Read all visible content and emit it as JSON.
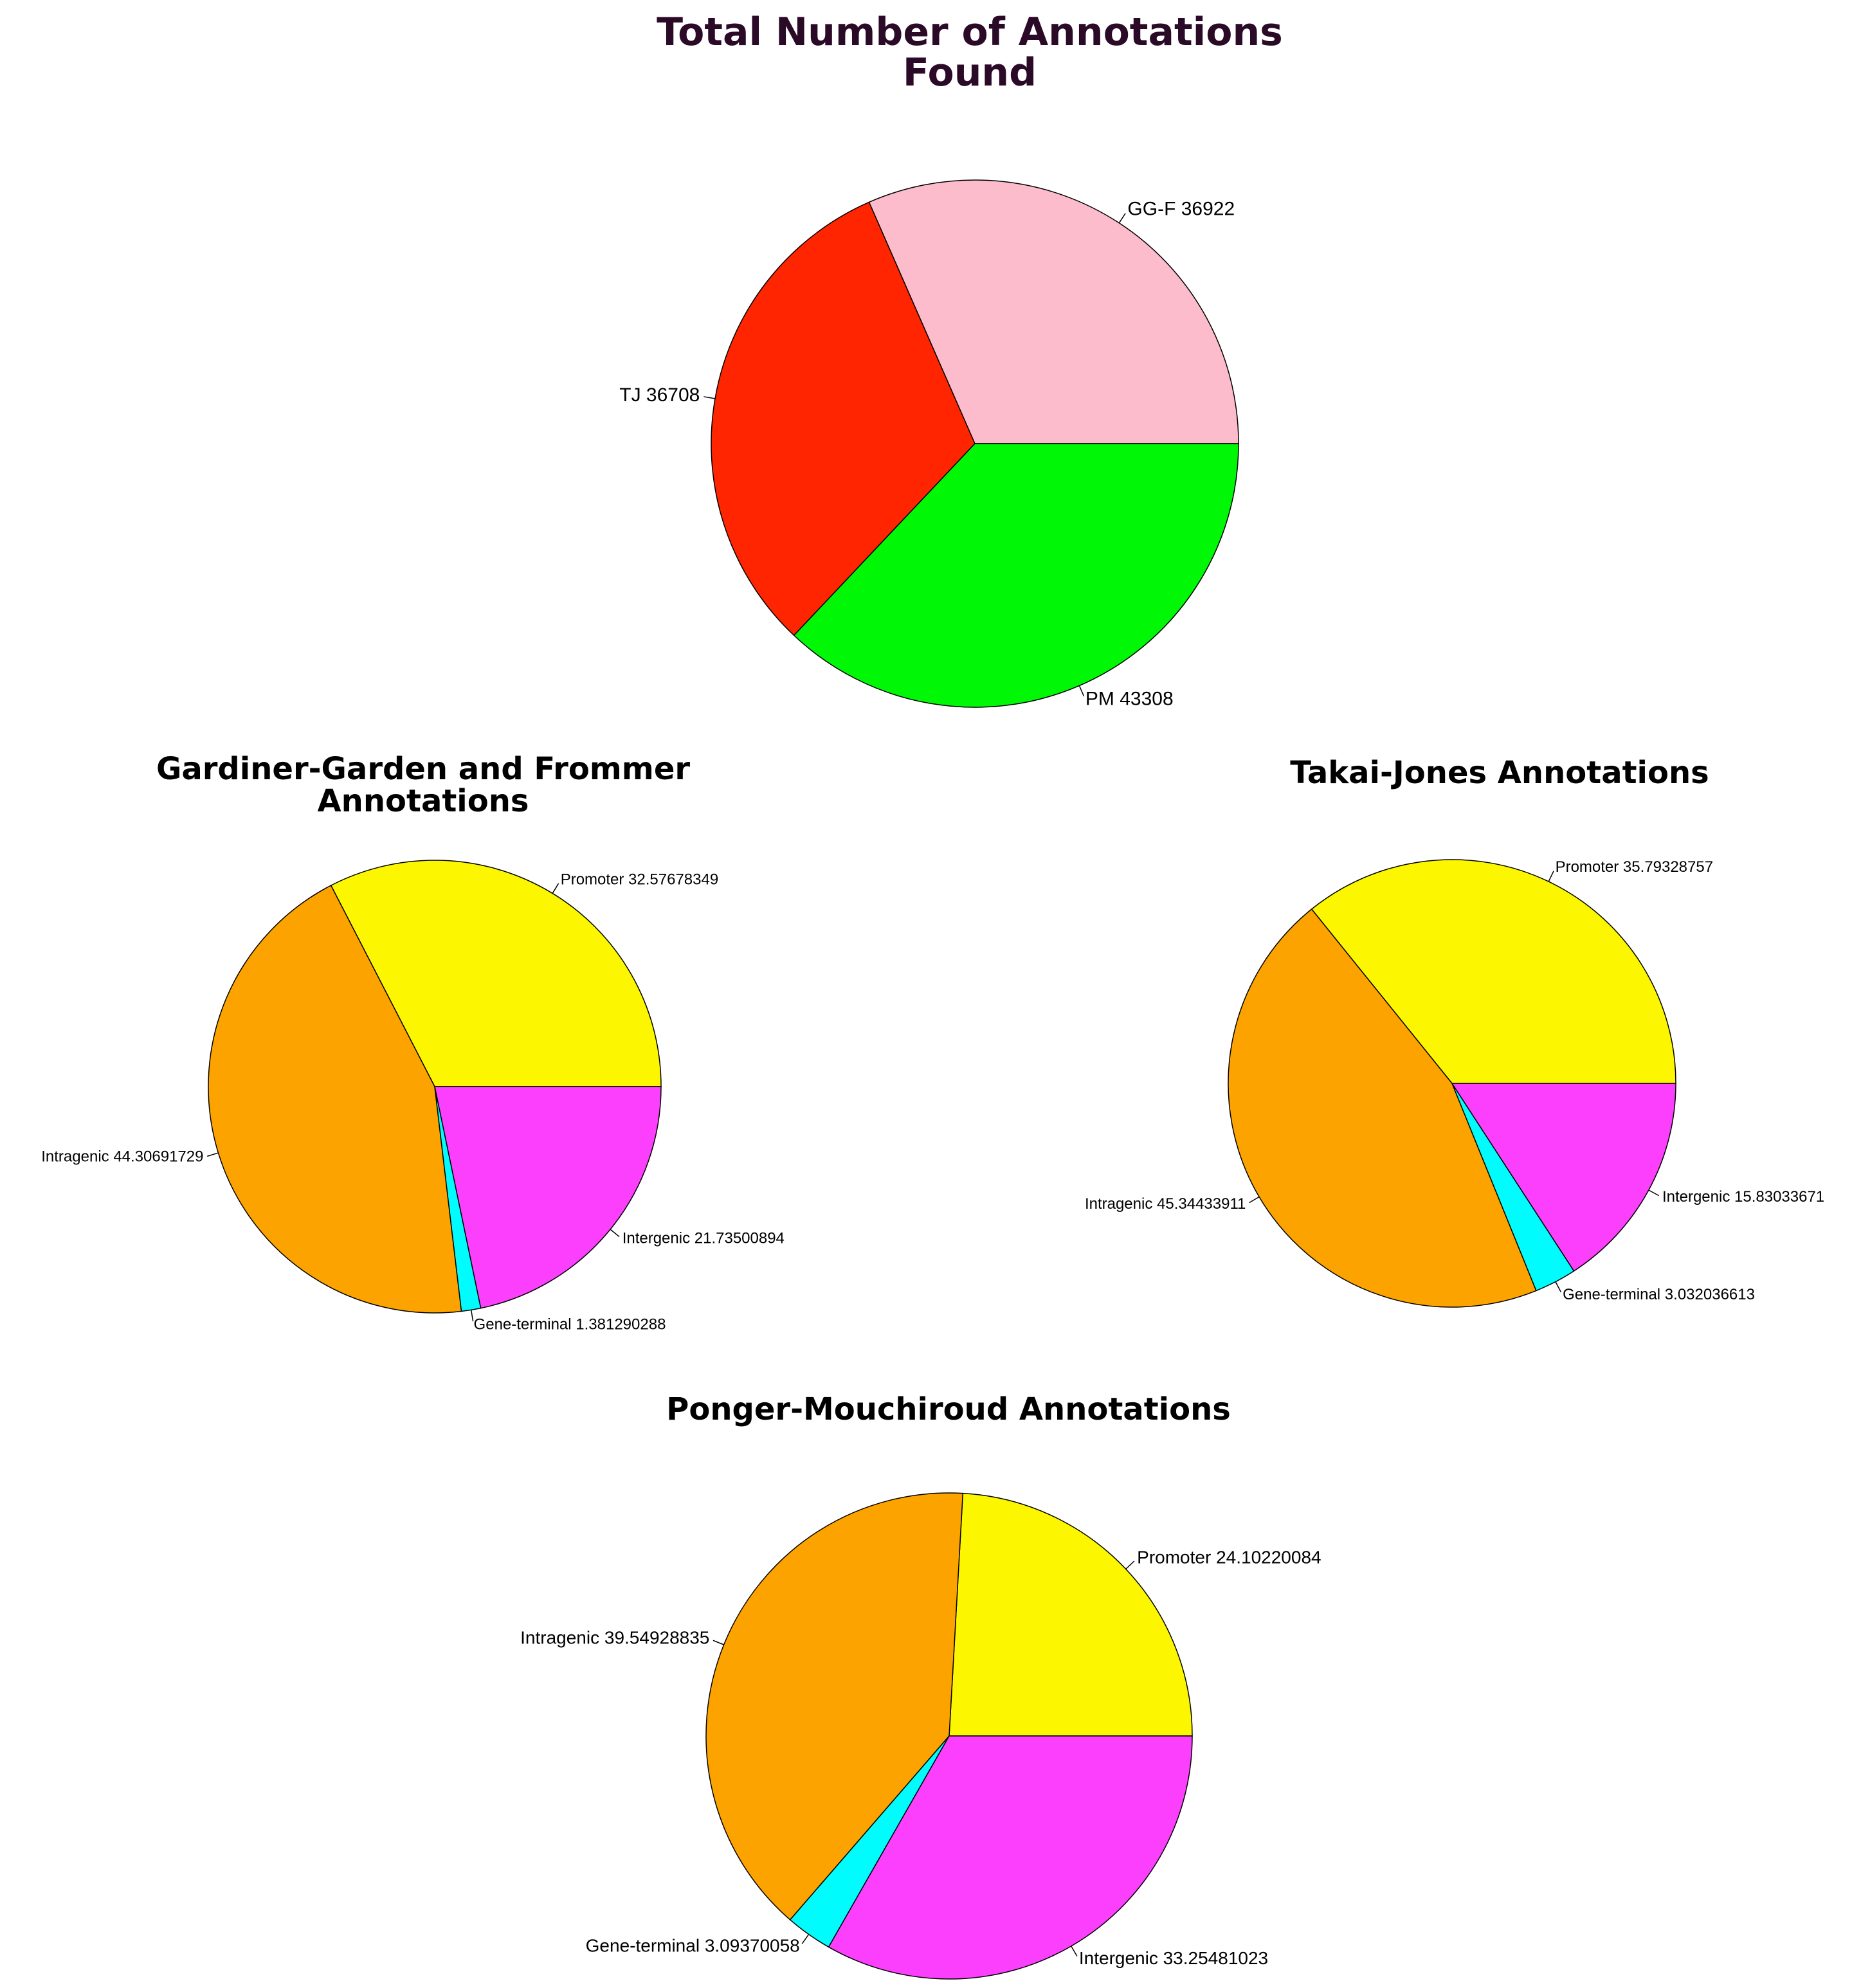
{
  "chart_data": [
    {
      "type": "pie",
      "title": "Total Number of Annotations\nFound",
      "title_color": "#2a0a26",
      "slices": [
        {
          "label": "GG-F 36922",
          "value": 36922,
          "color": "#fcbccb"
        },
        {
          "label": "TJ 36708",
          "value": 36708,
          "color": "#fe2500"
        },
        {
          "label": "PM 43308",
          "value": 43308,
          "color": "#00f806"
        }
      ]
    },
    {
      "type": "pie",
      "title": "Gardiner-Garden and Frommer\nAnnotations",
      "slices": [
        {
          "label": "Promoter 32.57678349",
          "value": 32.57678349,
          "color": "#fcf700"
        },
        {
          "label": "Intragenic 44.30691729",
          "value": 44.30691729,
          "color": "#fca300"
        },
        {
          "label": "Gene-terminal 1.381290288",
          "value": 1.381290288,
          "color": "#00fcfc"
        },
        {
          "label": "Intergenic 21.73500894",
          "value": 21.73500894,
          "color": "#fc3ffc"
        }
      ]
    },
    {
      "type": "pie",
      "title": "Takai-Jones Annotations",
      "slices": [
        {
          "label": "Promoter 35.79328757",
          "value": 35.79328757,
          "color": "#fcf700"
        },
        {
          "label": "Intragenic 45.34433911",
          "value": 45.34433911,
          "color": "#fca300"
        },
        {
          "label": "Gene-terminal 3.032036613",
          "value": 3.032036613,
          "color": "#00fcfc"
        },
        {
          "label": "Intergenic 15.83033671",
          "value": 15.83033671,
          "color": "#fc3ffc"
        }
      ]
    },
    {
      "type": "pie",
      "title": "Ponger-Mouchiroud Annotations",
      "slices": [
        {
          "label": "Promoter 24.10220084",
          "value": 24.10220084,
          "color": "#fcf700"
        },
        {
          "label": "Intragenic 39.54928835",
          "value": 39.54928835,
          "color": "#fca300"
        },
        {
          "label": "Gene-terminal 3.09370058",
          "value": 3.09370058,
          "color": "#00fcfc"
        },
        {
          "label": "Intergenic 33.25481023",
          "value": 33.25481023,
          "color": "#fc3ffc"
        }
      ]
    }
  ]
}
